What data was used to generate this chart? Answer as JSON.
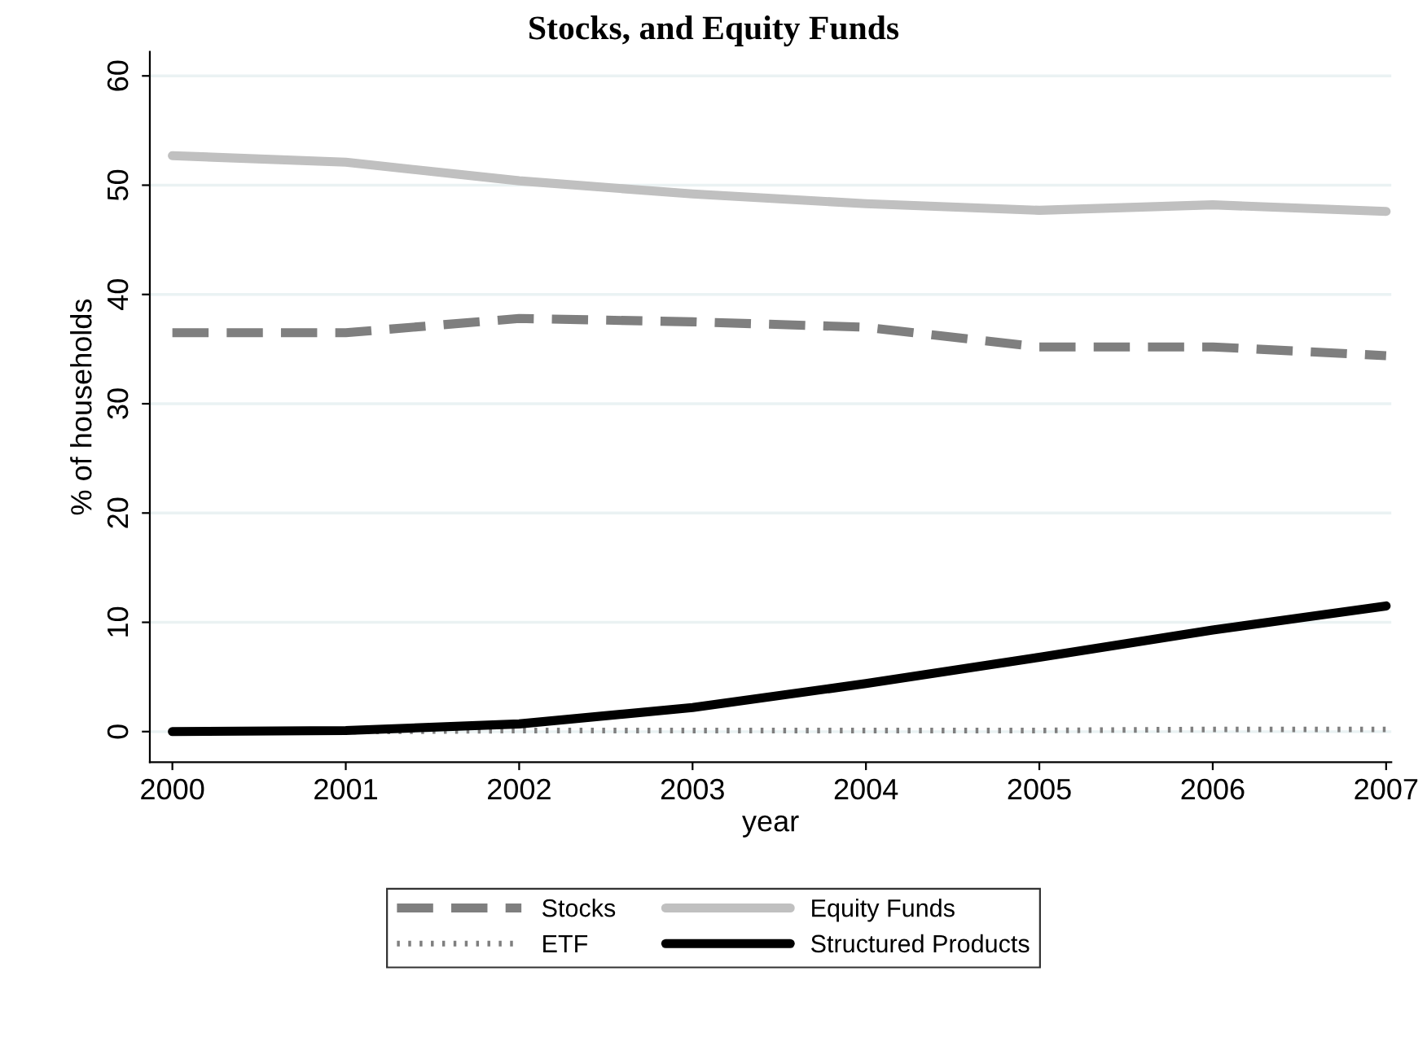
{
  "chart_data": {
    "type": "line",
    "title": "Stocks, and Equity Funds",
    "xlabel": "year",
    "ylabel": "% of households",
    "x": [
      2000,
      2001,
      2002,
      2003,
      2004,
      2005,
      2006,
      2007
    ],
    "series": [
      {
        "name": "Stocks",
        "color": "#7f7f7f",
        "line_style": "dashed",
        "values": [
          36.5,
          36.5,
          37.8,
          37.5,
          37.0,
          35.2,
          35.2,
          34.4
        ]
      },
      {
        "name": "Equity Funds",
        "color": "#c0c0c0",
        "line_style": "solid",
        "values": [
          52.7,
          52.1,
          50.4,
          49.2,
          48.3,
          47.7,
          48.2,
          47.6
        ]
      },
      {
        "name": "ETF",
        "color": "#7f7f7f",
        "line_style": "dotted",
        "values": [
          0,
          0,
          0.1,
          0.1,
          0.1,
          0.1,
          0.2,
          0.2
        ]
      },
      {
        "name": "Structured Products",
        "color": "#000000",
        "line_style": "solid",
        "values": [
          0,
          0.1,
          0.7,
          2.2,
          4.4,
          6.8,
          9.3,
          11.5
        ]
      }
    ],
    "xlim": [
      1999.87,
      2007.03
    ],
    "xticks": [
      2000,
      2001,
      2002,
      2003,
      2004,
      2005,
      2006,
      2007
    ],
    "ylim": [
      -2.8,
      62.2
    ],
    "yticks": [
      0,
      10,
      20,
      30,
      40,
      50,
      60
    ],
    "grid": "y",
    "legend": "bottom",
    "marker": "none"
  }
}
